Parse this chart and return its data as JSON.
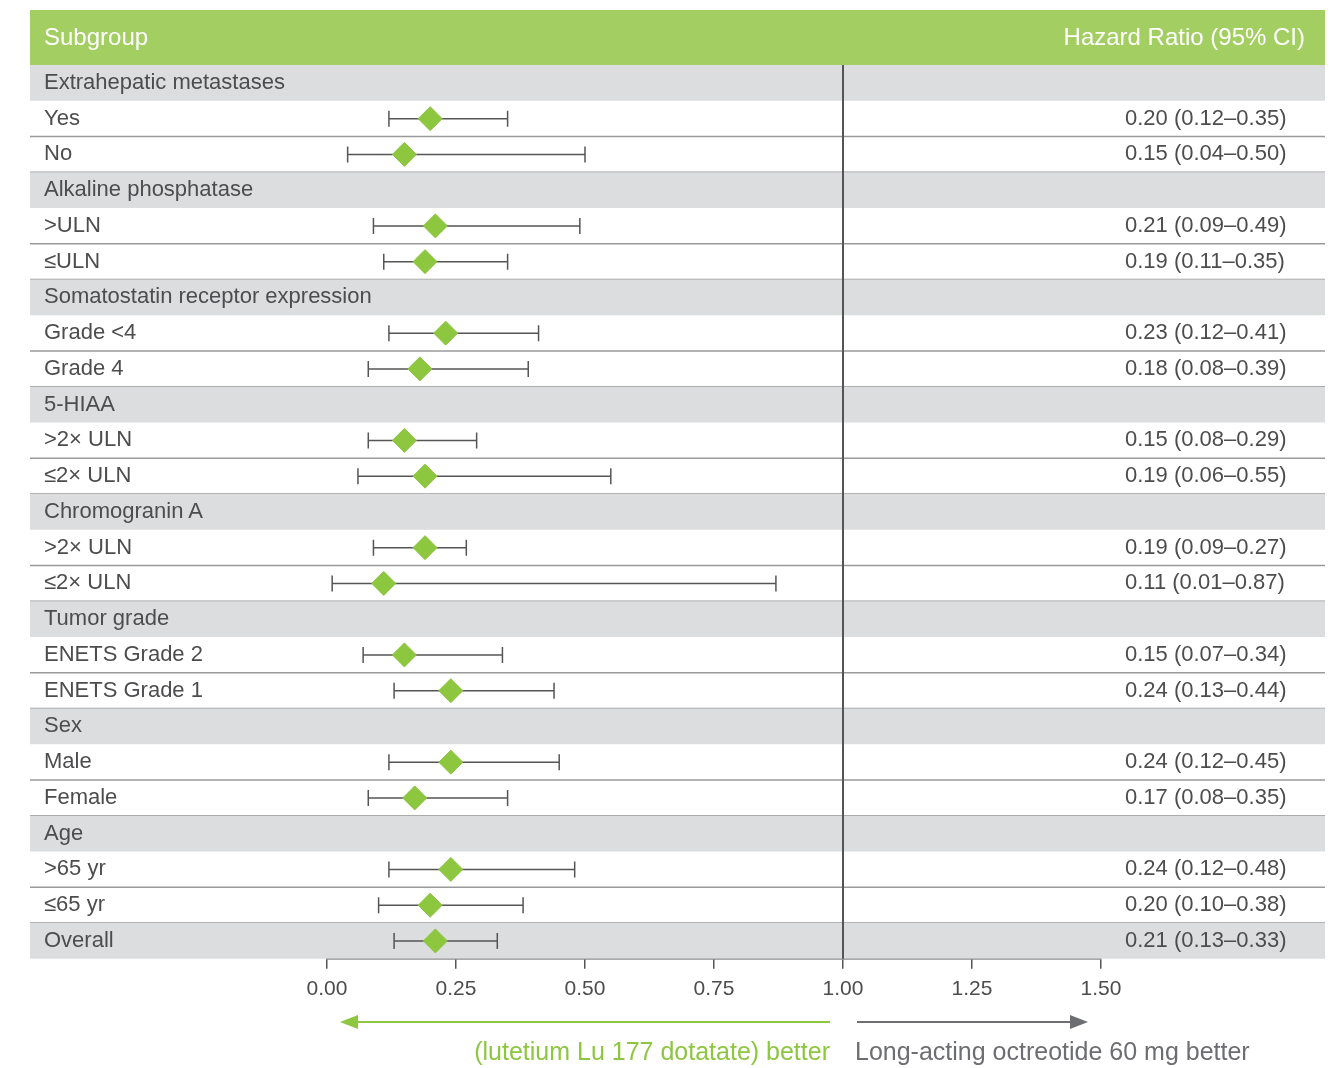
{
  "chart_data": {
    "type": "scatter",
    "orientation": "horizontal",
    "ylabel": "Subgroup",
    "y2label": "Hazard Ratio (95% CI)",
    "categories": [
      "Extrahepatic metastases",
      "Yes",
      "No",
      "Alkaline phosphatase",
      ">ULN",
      "≤ULN",
      "Somatostatin receptor expression",
      "Grade <4",
      "Grade 4",
      "5-HIAA",
      ">2× ULN",
      "≤2× ULN",
      "Chromogranin A",
      ">2× ULN",
      "≤2× ULN",
      "Tumor grade",
      "ENETS Grade 2",
      "ENETS Grade 1",
      "Sex",
      "Male",
      "Female",
      "Age",
      ">65 yr",
      "≤65 yr",
      "Overall"
    ],
    "values": [
      null,
      0.2,
      0.15,
      null,
      0.21,
      0.19,
      null,
      0.23,
      0.18,
      null,
      0.15,
      0.19,
      null,
      0.19,
      0.11,
      null,
      0.15,
      0.24,
      null,
      0.24,
      0.17,
      null,
      0.24,
      0.2,
      0.21
    ],
    "errors": [
      null,
      [
        0.12,
        0.35
      ],
      [
        0.04,
        0.5
      ],
      null,
      [
        0.09,
        0.49
      ],
      [
        0.11,
        0.35
      ],
      null,
      [
        0.12,
        0.41
      ],
      [
        0.08,
        0.39
      ],
      null,
      [
        0.08,
        0.29
      ],
      [
        0.06,
        0.55
      ],
      null,
      [
        0.09,
        0.27
      ],
      [
        0.01,
        0.87
      ],
      null,
      [
        0.07,
        0.34
      ],
      [
        0.13,
        0.44
      ],
      null,
      [
        0.12,
        0.45
      ],
      [
        0.08,
        0.35
      ],
      null,
      [
        0.12,
        0.48
      ],
      [
        0.1,
        0.38
      ],
      [
        0.13,
        0.33
      ]
    ],
    "value_labels": [
      null,
      "0.20 (0.12–0.35)",
      "0.15 (0.04–0.50)",
      null,
      "0.21 (0.09–0.49)",
      "0.19 (0.11–0.35)",
      null,
      "0.23 (0.12–0.41)",
      "0.18 (0.08–0.39)",
      null,
      "0.15 (0.08–0.29)",
      "0.19 (0.06–0.55)",
      null,
      "0.19 (0.09–0.27)",
      "0.11 (0.01–0.87)",
      null,
      "0.15 (0.07–0.34)",
      "0.24 (0.13–0.44)",
      null,
      "0.24 (0.12–0.45)",
      "0.17 (0.08–0.35)",
      null,
      "0.24 (0.12–0.48)",
      "0.20 (0.10–0.38)",
      "0.21 (0.13–0.33)"
    ],
    "color": "#8dc63f",
    "marker": "diamond",
    "xlim": [
      0,
      1.5
    ],
    "xticks": [
      {
        "value": 0,
        "label": "0.00"
      },
      {
        "value": 0.25,
        "label": "0.25"
      },
      {
        "value": 0.5,
        "label": "0.50"
      },
      {
        "value": 0.75,
        "label": "0.75"
      },
      {
        "value": 1,
        "label": "1.00"
      },
      {
        "value": 1.25,
        "label": "1.25"
      },
      {
        "value": 1.5,
        "label": "1.50"
      }
    ],
    "ref_lines": [
      {
        "axis": "x",
        "value": 1,
        "color": "#555555"
      }
    ],
    "grid": false,
    "legend": false,
    "annotations": [
      "(lutetium Lu 177 dotatate) better",
      "Long-acting octreotide 60 mg better"
    ]
  }
}
